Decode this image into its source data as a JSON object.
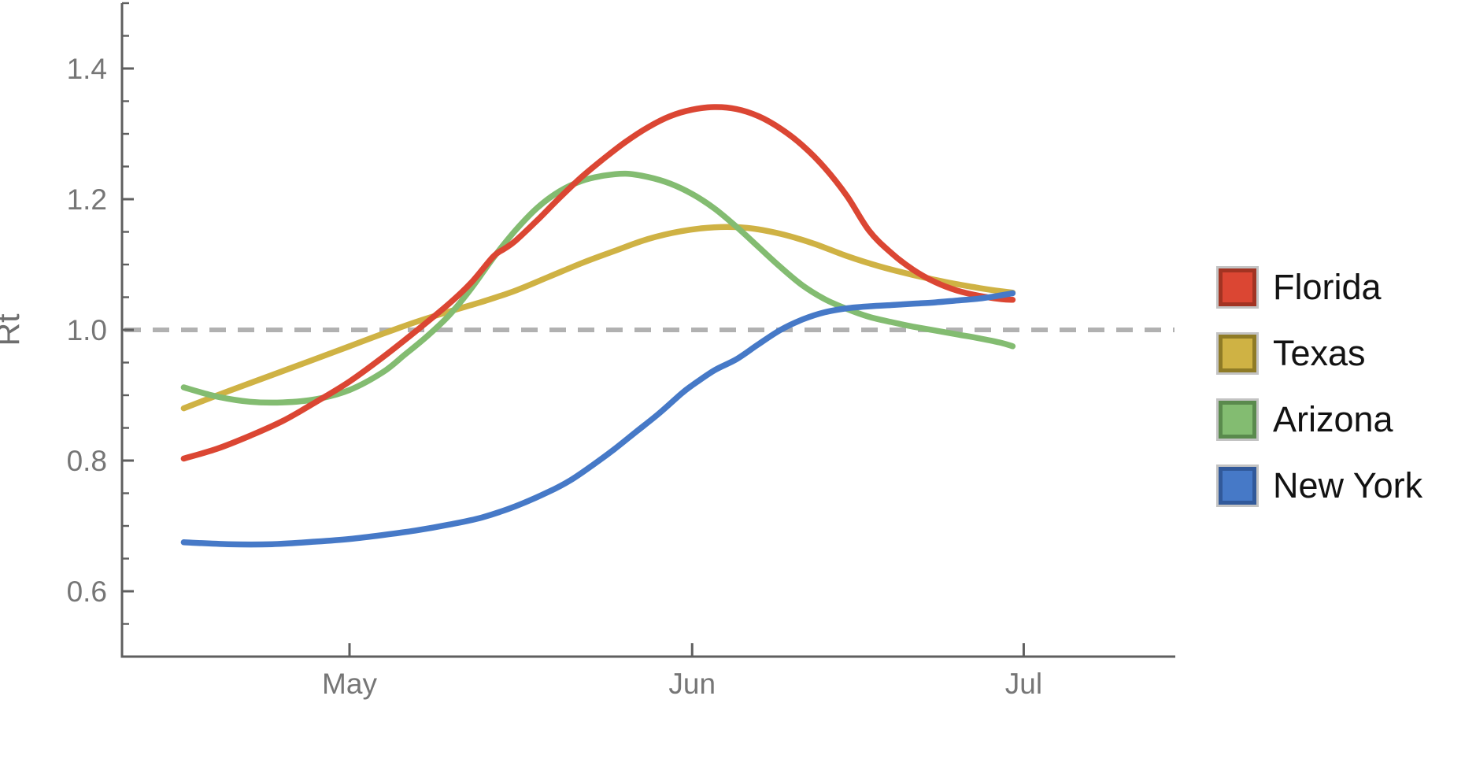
{
  "axes_style": {
    "axis_color": "#5f5f5f",
    "tick_label_color": "#767676",
    "axis_title_color": "#6e6e6e",
    "legend_text_color": "#121212",
    "legend_swatch_frame": "#c3c3c3"
  },
  "chart_data": {
    "type": "line",
    "title": "",
    "xlabel": "",
    "ylabel": "Rt",
    "ylim": [
      0.5,
      1.5
    ],
    "y_major_ticks": [
      "0.6",
      "0.8",
      "1.0",
      "1.2",
      "1.4"
    ],
    "y_minor_tick_step": 0.05,
    "x_ticks": [
      "May",
      "Jun",
      "Jul"
    ],
    "x_range": [
      "Apr 16",
      "Jun 30"
    ],
    "grid": false,
    "legend_position": "right",
    "reference_line": {
      "value": 1.0,
      "style": "dashed",
      "color": "#b1b1b1"
    },
    "draw_order": [
      "Texas",
      "Arizona",
      "Florida",
      "New York"
    ],
    "series": [
      {
        "name": "Florida",
        "color": "#db4633",
        "swatch_border": "#a23322",
        "points": [
          [
            "Apr 16",
            0.803
          ],
          [
            "Apr 19",
            0.818
          ],
          [
            "Apr 22",
            0.838
          ],
          [
            "Apr 25",
            0.861
          ],
          [
            "Apr 28",
            0.89
          ],
          [
            "May 1",
            0.921
          ],
          [
            "May 4",
            0.958
          ],
          [
            "May 7",
            0.998
          ],
          [
            "May 10",
            1.04
          ],
          [
            "May 12",
            1.072
          ],
          [
            "May 14",
            1.112
          ],
          [
            "May 15",
            1.124
          ],
          [
            "May 16",
            1.136
          ],
          [
            "May 18",
            1.168
          ],
          [
            "May 20",
            1.202
          ],
          [
            "May 22",
            1.234
          ],
          [
            "May 24",
            1.262
          ],
          [
            "May 26",
            1.288
          ],
          [
            "May 28",
            1.31
          ],
          [
            "May 30",
            1.327
          ],
          [
            "Jun 1",
            1.337
          ],
          [
            "Jun 3",
            1.341
          ],
          [
            "Jun 5",
            1.338
          ],
          [
            "Jun 7",
            1.327
          ],
          [
            "Jun 9",
            1.308
          ],
          [
            "Jun 11",
            1.282
          ],
          [
            "Jun 13",
            1.248
          ],
          [
            "Jun 15",
            1.205
          ],
          [
            "Jun 17",
            1.152
          ],
          [
            "Jun 19",
            1.118
          ],
          [
            "Jun 21",
            1.092
          ],
          [
            "Jun 23",
            1.073
          ],
          [
            "Jun 25",
            1.06
          ],
          [
            "Jun 27",
            1.052
          ],
          [
            "Jun 29",
            1.047
          ],
          [
            "Jun 30",
            1.046
          ]
        ]
      },
      {
        "name": "Texas",
        "color": "#cfb244",
        "swatch_border": "#8f7b26",
        "points": [
          [
            "Apr 16",
            0.88
          ],
          [
            "Apr 20",
            0.906
          ],
          [
            "Apr 24",
            0.931
          ],
          [
            "Apr 28",
            0.956
          ],
          [
            "May 1",
            0.975
          ],
          [
            "May 4",
            0.994
          ],
          [
            "May 7",
            1.012
          ],
          [
            "May 10",
            1.028
          ],
          [
            "May 13",
            1.043
          ],
          [
            "May 16",
            1.06
          ],
          [
            "May 19",
            1.081
          ],
          [
            "May 22",
            1.102
          ],
          [
            "May 25",
            1.121
          ],
          [
            "May 28",
            1.139
          ],
          [
            "May 31",
            1.151
          ],
          [
            "Jun 3",
            1.157
          ],
          [
            "Jun 6",
            1.156
          ],
          [
            "Jun 9",
            1.147
          ],
          [
            "Jun 12",
            1.132
          ],
          [
            "Jun 15",
            1.113
          ],
          [
            "Jun 18",
            1.097
          ],
          [
            "Jun 21",
            1.084
          ],
          [
            "Jun 24",
            1.073
          ],
          [
            "Jun 27",
            1.064
          ],
          [
            "Jun 29",
            1.059
          ],
          [
            "Jun 30",
            1.057
          ]
        ]
      },
      {
        "name": "Arizona",
        "color": "#83bc71",
        "swatch_border": "#5a8a4d",
        "points": [
          [
            "Apr 16",
            0.912
          ],
          [
            "Apr 19",
            0.898
          ],
          [
            "Apr 22",
            0.89
          ],
          [
            "Apr 25",
            0.889
          ],
          [
            "Apr 28",
            0.894
          ],
          [
            "May 1",
            0.908
          ],
          [
            "May 4",
            0.935
          ],
          [
            "May 6",
            0.962
          ],
          [
            "May 8",
            0.99
          ],
          [
            "May 10",
            1.022
          ],
          [
            "May 12",
            1.063
          ],
          [
            "May 14",
            1.11
          ],
          [
            "May 16",
            1.152
          ],
          [
            "May 18",
            1.187
          ],
          [
            "May 20",
            1.212
          ],
          [
            "May 22",
            1.228
          ],
          [
            "May 24",
            1.236
          ],
          [
            "May 26",
            1.239
          ],
          [
            "May 28",
            1.234
          ],
          [
            "May 30",
            1.224
          ],
          [
            "Jun 1",
            1.208
          ],
          [
            "Jun 3",
            1.186
          ],
          [
            "Jun 5",
            1.158
          ],
          [
            "Jun 7",
            1.127
          ],
          [
            "Jun 9",
            1.096
          ],
          [
            "Jun 11",
            1.068
          ],
          [
            "Jun 13",
            1.047
          ],
          [
            "Jun 15",
            1.032
          ],
          [
            "Jun 17",
            1.02
          ],
          [
            "Jun 19",
            1.012
          ],
          [
            "Jun 21",
            1.005
          ],
          [
            "Jun 23",
            0.999
          ],
          [
            "Jun 25",
            0.993
          ],
          [
            "Jun 27",
            0.987
          ],
          [
            "Jun 29",
            0.98
          ],
          [
            "Jun 30",
            0.975
          ]
        ]
      },
      {
        "name": "New York",
        "color": "#4679c7",
        "swatch_border": "#31599a",
        "points": [
          [
            "Apr 16",
            0.675
          ],
          [
            "Apr 20",
            0.672
          ],
          [
            "Apr 24",
            0.672
          ],
          [
            "Apr 28",
            0.676
          ],
          [
            "May 1",
            0.68
          ],
          [
            "May 4",
            0.686
          ],
          [
            "May 7",
            0.693
          ],
          [
            "May 10",
            0.702
          ],
          [
            "May 13",
            0.713
          ],
          [
            "May 16",
            0.73
          ],
          [
            "May 19",
            0.752
          ],
          [
            "May 21",
            0.77
          ],
          [
            "May 23",
            0.793
          ],
          [
            "May 25",
            0.818
          ],
          [
            "May 27",
            0.845
          ],
          [
            "May 29",
            0.872
          ],
          [
            "May 31",
            0.902
          ],
          [
            "Jun 1",
            0.915
          ],
          [
            "Jun 3",
            0.938
          ],
          [
            "Jun 5",
            0.955
          ],
          [
            "Jun 7",
            0.978
          ],
          [
            "Jun 9",
            1.0
          ],
          [
            "Jun 11",
            1.016
          ],
          [
            "Jun 13",
            1.027
          ],
          [
            "Jun 15",
            1.033
          ],
          [
            "Jun 17",
            1.036
          ],
          [
            "Jun 19",
            1.038
          ],
          [
            "Jun 21",
            1.04
          ],
          [
            "Jun 23",
            1.042
          ],
          [
            "Jun 25",
            1.045
          ],
          [
            "Jun 27",
            1.048
          ],
          [
            "Jun 29",
            1.053
          ],
          [
            "Jun 30",
            1.056
          ]
        ]
      }
    ],
    "legend_items": [
      "Florida",
      "Texas",
      "Arizona",
      "New York"
    ]
  }
}
